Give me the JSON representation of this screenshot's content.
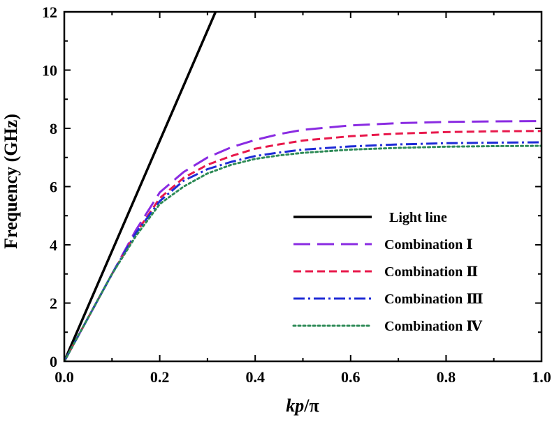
{
  "chart_data": {
    "type": "line",
    "xlabel": "kp/π",
    "xlabel_parts": {
      "italic": "kp",
      "rest": "/π"
    },
    "ylabel": "Frequency (GHz)",
    "xlim": [
      0.0,
      1.0
    ],
    "ylim": [
      0,
      12
    ],
    "x_ticks": [
      0.0,
      0.2,
      0.4,
      0.6,
      0.8,
      1.0
    ],
    "x_tick_labels": [
      "0.0",
      "0.2",
      "0.4",
      "0.6",
      "0.8",
      "1.0"
    ],
    "y_ticks": [
      0,
      2,
      4,
      6,
      8,
      10,
      12
    ],
    "y_tick_labels": [
      "0",
      "2",
      "4",
      "6",
      "8",
      "10",
      "12"
    ],
    "grid": false,
    "legend_position": "bottom-right",
    "series": [
      {
        "name": "Light line",
        "color": "#000000",
        "dash": "solid",
        "x": [
          0.0,
          0.317
        ],
        "y": [
          0.0,
          12.0
        ]
      },
      {
        "name": "Combination Ⅰ",
        "color": "#8a2be2",
        "dash": "long-dash",
        "x": [
          0.0,
          0.05,
          0.1,
          0.15,
          0.2,
          0.25,
          0.3,
          0.35,
          0.4,
          0.45,
          0.5,
          0.6,
          0.7,
          0.8,
          0.9,
          1.0
        ],
        "y": [
          0.0,
          1.5,
          3.0,
          4.5,
          5.8,
          6.5,
          7.0,
          7.35,
          7.6,
          7.8,
          7.95,
          8.1,
          8.18,
          8.22,
          8.24,
          8.25
        ]
      },
      {
        "name": "Combination Ⅱ",
        "color": "#e8184b",
        "dash": "short-dash",
        "x": [
          0.0,
          0.05,
          0.1,
          0.15,
          0.2,
          0.25,
          0.3,
          0.35,
          0.4,
          0.45,
          0.5,
          0.6,
          0.7,
          0.8,
          0.9,
          1.0
        ],
        "y": [
          0.0,
          1.5,
          3.0,
          4.4,
          5.6,
          6.3,
          6.75,
          7.05,
          7.3,
          7.45,
          7.58,
          7.73,
          7.82,
          7.87,
          7.9,
          7.91
        ]
      },
      {
        "name": "Combination Ⅲ",
        "color": "#1f2bd6",
        "dash": "dash-dot",
        "x": [
          0.0,
          0.05,
          0.1,
          0.15,
          0.2,
          0.25,
          0.3,
          0.35,
          0.4,
          0.45,
          0.5,
          0.6,
          0.7,
          0.8,
          0.9,
          1.0
        ],
        "y": [
          0.0,
          1.5,
          3.0,
          4.4,
          5.5,
          6.2,
          6.6,
          6.85,
          7.05,
          7.17,
          7.27,
          7.38,
          7.45,
          7.49,
          7.51,
          7.52
        ]
      },
      {
        "name": "Combination Ⅳ",
        "color": "#2e8b57",
        "dash": "dotted",
        "x": [
          0.0,
          0.05,
          0.1,
          0.15,
          0.2,
          0.25,
          0.3,
          0.35,
          0.4,
          0.45,
          0.5,
          0.6,
          0.7,
          0.8,
          0.9,
          1.0
        ],
        "y": [
          0.0,
          1.5,
          3.0,
          4.3,
          5.4,
          6.0,
          6.45,
          6.75,
          6.95,
          7.07,
          7.16,
          7.27,
          7.33,
          7.37,
          7.39,
          7.4
        ]
      }
    ]
  }
}
